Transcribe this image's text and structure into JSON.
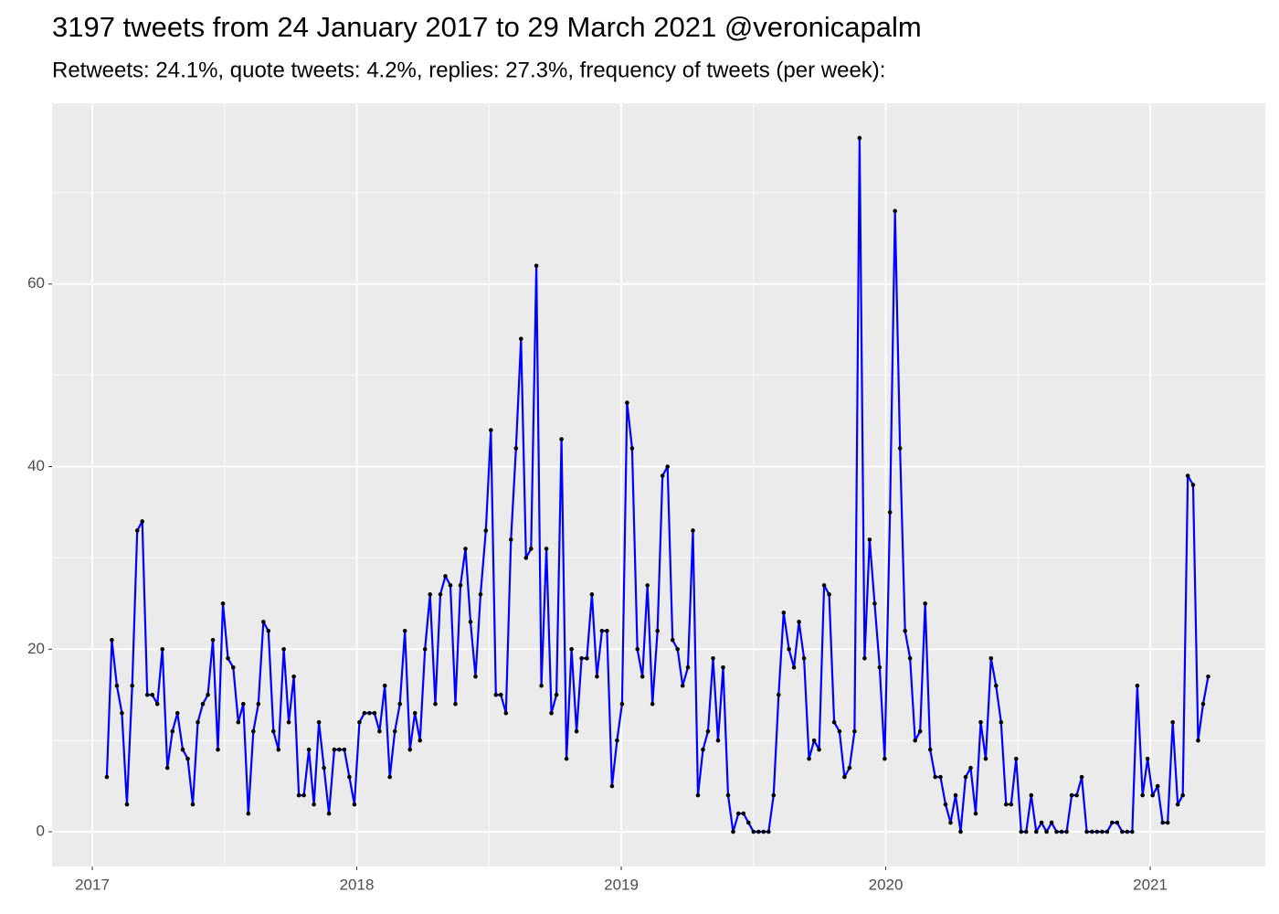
{
  "chart_data": {
    "type": "line",
    "title": "3197 tweets from 24 January 2017 to 29 March 2021 @veronicapalm",
    "subtitle": "Retweets: 24.1%, quote tweets: 4.2%, replies: 27.3%, frequency of tweets (per week):",
    "x": [
      2017.055,
      2017.074,
      2017.093,
      2017.112,
      2017.131,
      2017.151,
      2017.17,
      2017.189,
      2017.208,
      2017.227,
      2017.246,
      2017.265,
      2017.284,
      2017.303,
      2017.322,
      2017.342,
      2017.361,
      2017.38,
      2017.399,
      2017.418,
      2017.437,
      2017.456,
      2017.475,
      2017.494,
      2017.513,
      2017.533,
      2017.552,
      2017.571,
      2017.59,
      2017.609,
      2017.628,
      2017.647,
      2017.666,
      2017.685,
      2017.704,
      2017.724,
      2017.743,
      2017.762,
      2017.781,
      2017.8,
      2017.819,
      2017.838,
      2017.857,
      2017.876,
      2017.895,
      2017.915,
      2017.934,
      2017.953,
      2017.972,
      2017.991,
      2018.01,
      2018.029,
      2018.048,
      2018.067,
      2018.086,
      2018.106,
      2018.125,
      2018.144,
      2018.163,
      2018.182,
      2018.201,
      2018.22,
      2018.239,
      2018.258,
      2018.277,
      2018.297,
      2018.316,
      2018.335,
      2018.354,
      2018.373,
      2018.392,
      2018.411,
      2018.43,
      2018.449,
      2018.468,
      2018.488,
      2018.507,
      2018.526,
      2018.545,
      2018.564,
      2018.583,
      2018.602,
      2018.621,
      2018.64,
      2018.659,
      2018.679,
      2018.698,
      2018.717,
      2018.736,
      2018.755,
      2018.774,
      2018.793,
      2018.812,
      2018.831,
      2018.85,
      2018.87,
      2018.889,
      2018.908,
      2018.927,
      2018.946,
      2018.965,
      2018.984,
      2019.003,
      2019.022,
      2019.041,
      2019.061,
      2019.08,
      2019.099,
      2019.118,
      2019.137,
      2019.156,
      2019.175,
      2019.194,
      2019.213,
      2019.232,
      2019.252,
      2019.271,
      2019.29,
      2019.309,
      2019.328,
      2019.347,
      2019.366,
      2019.385,
      2019.404,
      2019.423,
      2019.443,
      2019.462,
      2019.481,
      2019.5,
      2019.519,
      2019.538,
      2019.557,
      2019.576,
      2019.595,
      2019.614,
      2019.634,
      2019.653,
      2019.672,
      2019.691,
      2019.71,
      2019.729,
      2019.748,
      2019.767,
      2019.786,
      2019.805,
      2019.825,
      2019.844,
      2019.863,
      2019.882,
      2019.901,
      2019.92,
      2019.939,
      2019.958,
      2019.977,
      2019.996,
      2020.016,
      2020.035,
      2020.054,
      2020.073,
      2020.092,
      2020.111,
      2020.13,
      2020.149,
      2020.168,
      2020.187,
      2020.207,
      2020.226,
      2020.245,
      2020.264,
      2020.283,
      2020.302,
      2020.321,
      2020.34,
      2020.359,
      2020.378,
      2020.398,
      2020.417,
      2020.436,
      2020.455,
      2020.474,
      2020.493,
      2020.512,
      2020.531,
      2020.55,
      2020.569,
      2020.589,
      2020.608,
      2020.627,
      2020.646,
      2020.665,
      2020.684,
      2020.703,
      2020.722,
      2020.741,
      2020.76,
      2020.78,
      2020.799,
      2020.818,
      2020.837,
      2020.856,
      2020.875,
      2020.894,
      2020.913,
      2020.932,
      2020.951,
      2020.971,
      2020.99,
      2021.009,
      2021.028,
      2021.047,
      2021.066,
      2021.085,
      2021.104,
      2021.123,
      2021.142,
      2021.162,
      2021.181,
      2021.2,
      2021.219
    ],
    "values": [
      6,
      21,
      16,
      13,
      3,
      16,
      33,
      34,
      15,
      15,
      14,
      20,
      7,
      11,
      13,
      9,
      8,
      3,
      12,
      14,
      15,
      21,
      9,
      25,
      19,
      18,
      12,
      14,
      2,
      11,
      14,
      23,
      22,
      11,
      9,
      20,
      12,
      17,
      4,
      4,
      9,
      3,
      12,
      7,
      2,
      9,
      9,
      9,
      6,
      3,
      12,
      13,
      13,
      13,
      11,
      16,
      6,
      11,
      14,
      22,
      9,
      13,
      10,
      20,
      26,
      14,
      26,
      28,
      27,
      14,
      27,
      31,
      23,
      17,
      26,
      33,
      44,
      15,
      15,
      13,
      32,
      42,
      54,
      30,
      31,
      62,
      16,
      31,
      13,
      15,
      43,
      8,
      20,
      11,
      19,
      19,
      26,
      17,
      22,
      22,
      5,
      10,
      14,
      47,
      42,
      20,
      17,
      27,
      14,
      22,
      39,
      40,
      21,
      20,
      16,
      18,
      33,
      4,
      9,
      11,
      19,
      10,
      18,
      4,
      0,
      2,
      2,
      1,
      0,
      0,
      0,
      0,
      4,
      15,
      24,
      20,
      18,
      23,
      19,
      8,
      10,
      9,
      27,
      26,
      12,
      11,
      6,
      7,
      11,
      76,
      19,
      32,
      25,
      18,
      8,
      35,
      68,
      42,
      22,
      19,
      10,
      11,
      25,
      9,
      6,
      6,
      3,
      1,
      4,
      0,
      6,
      7,
      2,
      12,
      8,
      19,
      16,
      12,
      3,
      3,
      8,
      0,
      0,
      4,
      0,
      1,
      0,
      1,
      0,
      0,
      0,
      4,
      4,
      6,
      0,
      0,
      0,
      0,
      0,
      1,
      1,
      0,
      0,
      0,
      16,
      4,
      8,
      4,
      5,
      1,
      1,
      12,
      3,
      4,
      39,
      38,
      10,
      14,
      17
    ],
    "color": "#0000ff",
    "point_color": "#000000",
    "xlim": [
      2016.848,
      2021.435
    ],
    "xticks": [
      2017,
      2018,
      2019,
      2020,
      2021
    ],
    "ylim": [
      -3.8,
      79.8
    ],
    "yticks": [
      0,
      20,
      40,
      60
    ],
    "grid": true
  }
}
